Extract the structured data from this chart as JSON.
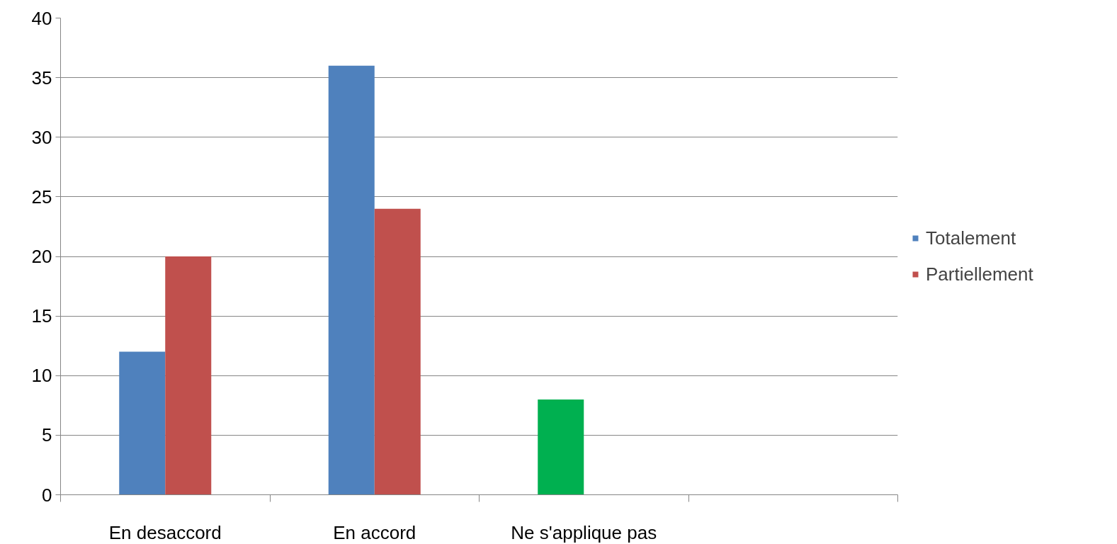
{
  "chart_data": {
    "type": "bar",
    "categories": [
      "En desaccord",
      "En accord",
      "Ne s'applique pas",
      null
    ],
    "series": [
      {
        "name": "Totalement",
        "color": "#4f81bd",
        "colors": [
          "#4f81bd",
          "#4f81bd",
          "#00b050",
          null
        ],
        "values": [
          12,
          36,
          8,
          null
        ]
      },
      {
        "name": "Partiellement",
        "color": "#c0504d",
        "values": [
          20,
          24,
          null,
          null
        ]
      }
    ],
    "ylim": [
      0,
      40
    ],
    "yticks": [
      0,
      5,
      10,
      15,
      20,
      25,
      30,
      35,
      40
    ],
    "grid": "y",
    "legend": "right"
  }
}
